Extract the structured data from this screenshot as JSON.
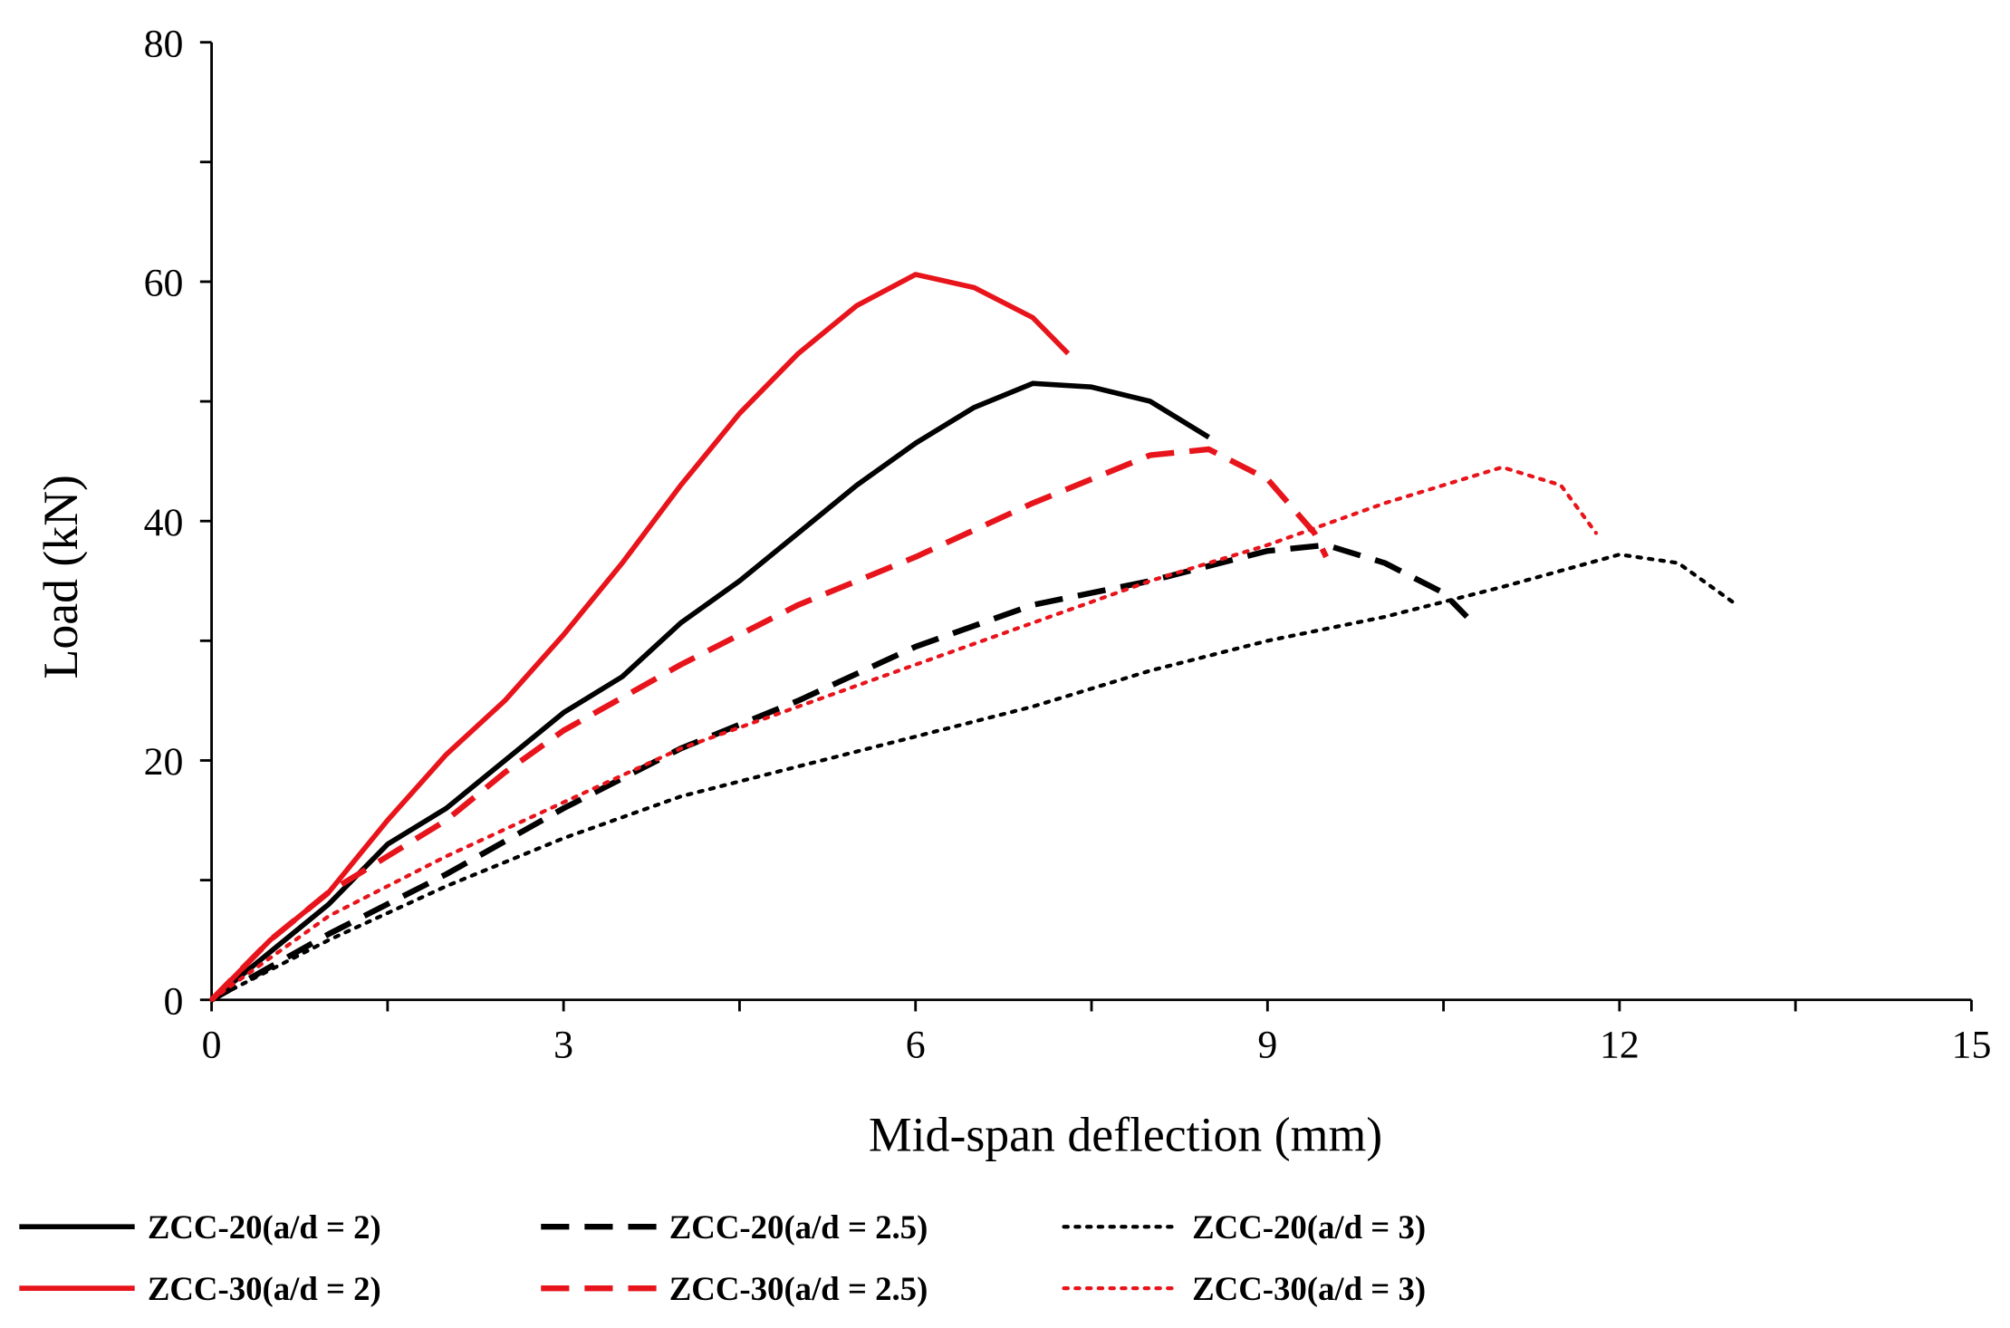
{
  "chart_data": {
    "type": "line",
    "title": "",
    "xlabel": "Mid-span deflection (mm)",
    "ylabel": "Load (kN)",
    "xlim": [
      0,
      15
    ],
    "ylim": [
      0,
      80
    ],
    "xticks": [
      0,
      3,
      6,
      9,
      12,
      15
    ],
    "yticks": [
      0,
      20,
      40,
      60,
      80
    ],
    "grid": false,
    "legend_position": "bottom",
    "series": [
      {
        "name": "ZCC-20(a/d = 2)",
        "color": "#000000",
        "style": "solid",
        "x": [
          0,
          0.5,
          1,
          1.5,
          2,
          2.5,
          3,
          3.5,
          4,
          4.5,
          5,
          5.5,
          6,
          6.5,
          7,
          7.5,
          8,
          8.5
        ],
        "y": [
          0,
          4,
          8,
          13,
          16,
          20,
          24,
          27,
          31.5,
          35,
          39,
          43,
          46.5,
          49.5,
          51.5,
          51.2,
          50,
          47
        ]
      },
      {
        "name": "ZCC-20(a/d = 2.5)",
        "color": "#000000",
        "style": "dashed",
        "x": [
          0,
          1,
          2,
          3,
          4,
          5,
          6,
          7,
          8,
          9,
          9.5,
          10,
          10.5,
          10.7
        ],
        "y": [
          0,
          5.5,
          10.5,
          16,
          21,
          25,
          29.5,
          33,
          35,
          37.5,
          38,
          36.5,
          34,
          32
        ]
      },
      {
        "name": "ZCC-20(a/d = 3)",
        "color": "#000000",
        "style": "dotted",
        "x": [
          0,
          1,
          2,
          3,
          4,
          5,
          6,
          7,
          8,
          9,
          10,
          11,
          12,
          12.5,
          13
        ],
        "y": [
          0,
          5,
          9.5,
          13.5,
          17,
          19.5,
          22,
          24.5,
          27.5,
          30,
          32,
          34.5,
          37.2,
          36.5,
          33
        ]
      },
      {
        "name": "ZCC-30(a/d = 2)",
        "color": "#E8141B",
        "style": "solid",
        "x": [
          0,
          0.5,
          1,
          1.5,
          2,
          2.5,
          3,
          3.5,
          4,
          4.5,
          5,
          5.5,
          6,
          6.5,
          7,
          7.3
        ],
        "y": [
          0,
          5,
          9,
          15,
          20.5,
          25,
          30.5,
          36.5,
          43,
          49,
          54,
          58,
          60.6,
          59.5,
          57,
          54
        ]
      },
      {
        "name": "ZCC-30(a/d = 2.5)",
        "color": "#E8141B",
        "style": "dashed",
        "x": [
          0,
          0.5,
          1,
          2,
          2.5,
          3,
          4,
          5,
          6,
          7,
          8,
          8.5,
          9,
          9.4,
          9.5
        ],
        "y": [
          0,
          5,
          9,
          15,
          19,
          22.5,
          28,
          33,
          37,
          41.5,
          45.5,
          46,
          43.5,
          39,
          37
        ]
      },
      {
        "name": "ZCC-30(a/d = 3)",
        "color": "#E8141B",
        "style": "dotted",
        "x": [
          0,
          1,
          2,
          3,
          4,
          5,
          6,
          7,
          8,
          9,
          10,
          11,
          11.5,
          11.8
        ],
        "y": [
          0,
          7,
          12,
          16.5,
          21,
          24.5,
          28,
          31.5,
          35,
          38,
          41.5,
          44.5,
          43,
          39
        ]
      }
    ]
  }
}
